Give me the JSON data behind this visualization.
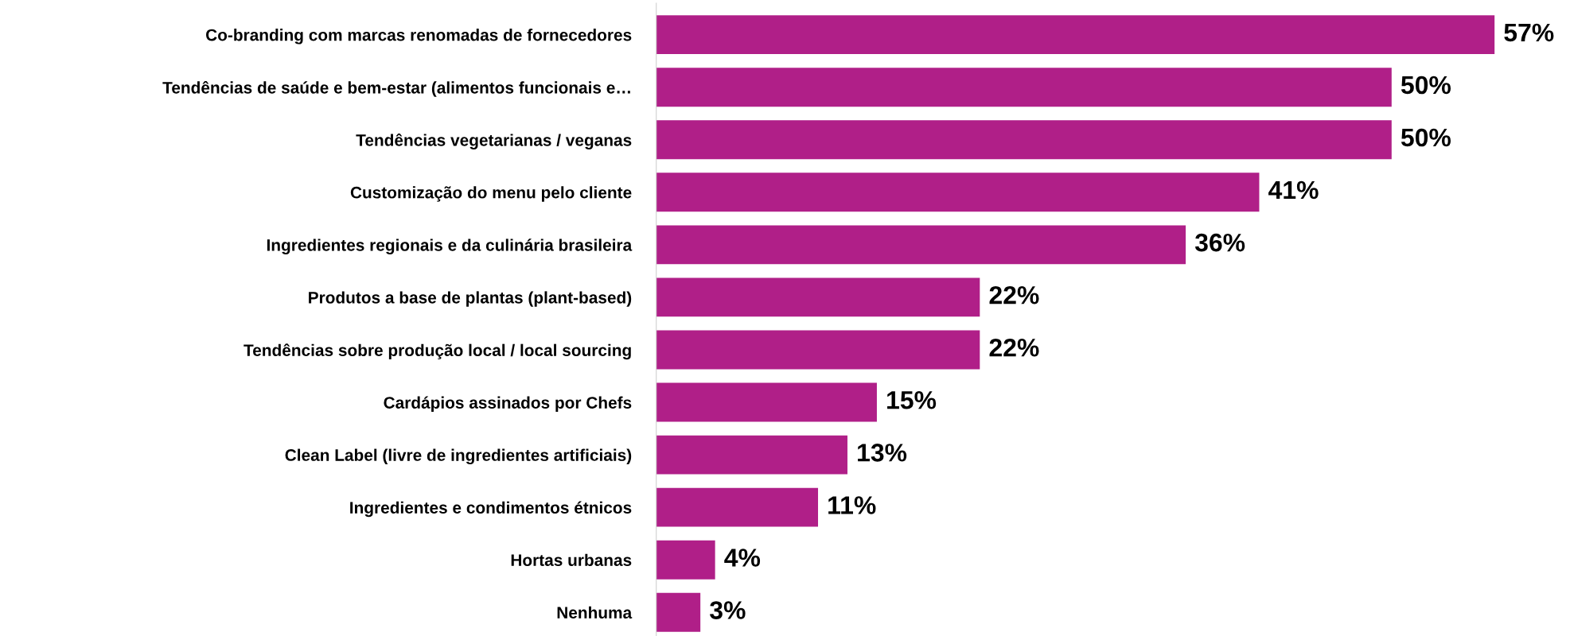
{
  "chart_data": {
    "type": "bar",
    "orientation": "horizontal",
    "categories": [
      "Co-branding com marcas renomadas de fornecedores",
      "Tendências de saúde e bem-estar (alimentos funcionais e…",
      "Tendências vegetarianas / veganas",
      "Customização do menu pelo cliente",
      "Ingredientes regionais e da culinária brasileira",
      "Produtos a base de plantas (plant-based)",
      "Tendências sobre produção local / local sourcing",
      "Cardápios assinados por Chefs",
      "Clean Label (livre de ingredientes artificiais)",
      "Ingredientes e condimentos étnicos",
      "Hortas urbanas",
      "Nenhuma"
    ],
    "values": [
      57,
      50,
      50,
      41,
      36,
      22,
      22,
      15,
      13,
      11,
      4,
      3
    ],
    "value_labels": [
      "57%",
      "50%",
      "50%",
      "41%",
      "36%",
      "22%",
      "22%",
      "15%",
      "13%",
      "11%",
      "4%",
      "3%"
    ],
    "color": "#b01f88",
    "tick_labels": "y",
    "grid": false,
    "legend": false
  }
}
